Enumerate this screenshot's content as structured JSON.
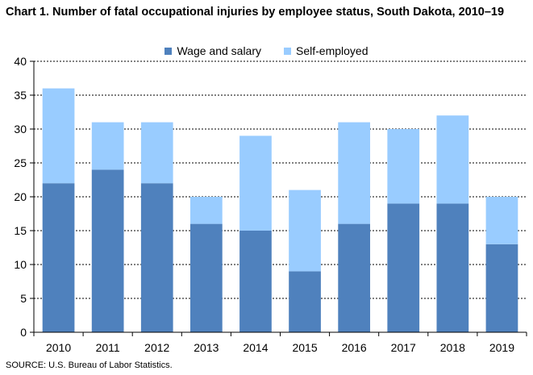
{
  "title": "Chart 1. Number of fatal occupational injuries by employee status, South Dakota, 2010–19",
  "source": "SOURCE: U.S. Bureau of Labor Statistics.",
  "legend": {
    "wage": "Wage and salary",
    "self": "Self-employed"
  },
  "colors": {
    "wage": "#4f81bd",
    "self": "#99ccff"
  },
  "chart_data": {
    "type": "bar",
    "stacked": true,
    "title": "Chart 1. Number of fatal occupational injuries by employee status, South Dakota, 2010–19",
    "xlabel": "",
    "ylabel": "",
    "ylim": [
      0,
      40
    ],
    "yticks": [
      0,
      5,
      10,
      15,
      20,
      25,
      30,
      35,
      40
    ],
    "grid": true,
    "legend_position": "top",
    "categories": [
      "2010",
      "2011",
      "2012",
      "2013",
      "2014",
      "2015",
      "2016",
      "2017",
      "2018",
      "2019"
    ],
    "series": [
      {
        "name": "Wage and salary",
        "values": [
          22,
          24,
          22,
          16,
          15,
          9,
          16,
          19,
          19,
          13
        ]
      },
      {
        "name": "Self-employed",
        "values": [
          14,
          7,
          9,
          4,
          14,
          12,
          15,
          11,
          13,
          7
        ]
      }
    ]
  }
}
